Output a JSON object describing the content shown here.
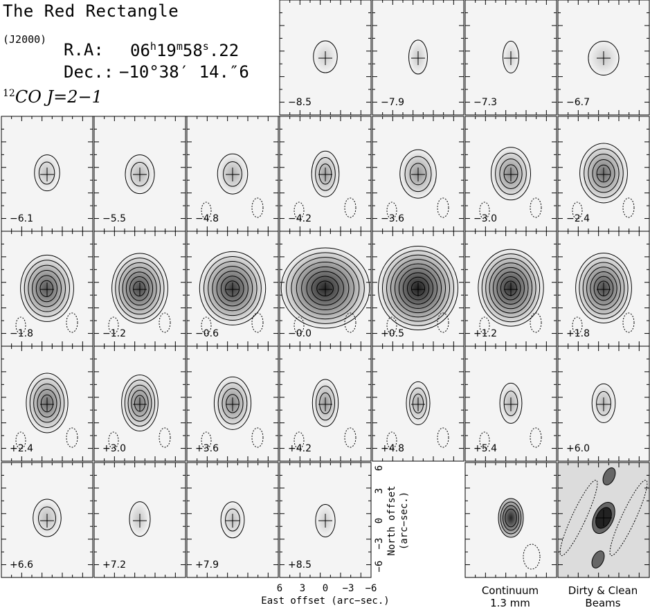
{
  "header": {
    "title": "The Red Rectangle",
    "epoch": "(J2000)",
    "ra_label": "R.A:",
    "ra_hours": "06",
    "ra_h_unit": "h",
    "ra_minutes": "19",
    "ra_m_unit": "m",
    "ra_seconds": "58",
    "ra_s_unit": "s",
    "ra_frac": ".22",
    "dec_label": "Dec.:",
    "dec_value": "−10°38′ 14.″6",
    "line_iso": "12",
    "line_name": "CO  J=2−1"
  },
  "channels": [
    {
      "label": "−8.5"
    },
    {
      "label": "−7.9"
    },
    {
      "label": "−7.3"
    },
    {
      "label": "−6.7"
    },
    {
      "label": "−6.1"
    },
    {
      "label": "−5.5"
    },
    {
      "label": "−4.8"
    },
    {
      "label": "−4.2"
    },
    {
      "label": "−3.6"
    },
    {
      "label": "−3.0"
    },
    {
      "label": "−2.4"
    },
    {
      "label": "−1.8"
    },
    {
      "label": "−1.2"
    },
    {
      "label": "−0.6"
    },
    {
      "label": "−0.0"
    },
    {
      "label": "+0.5"
    },
    {
      "label": "+1.2"
    },
    {
      "label": "+1.8"
    },
    {
      "label": "+2.4"
    },
    {
      "label": "+3.0"
    },
    {
      "label": "+3.6"
    },
    {
      "label": "+4.2"
    },
    {
      "label": "+4.8"
    },
    {
      "label": "+5.4"
    },
    {
      "label": "+6.0"
    },
    {
      "label": "+6.6"
    },
    {
      "label": "+7.2"
    },
    {
      "label": "+7.9"
    },
    {
      "label": "+8.5"
    }
  ],
  "x_axis": {
    "ticks": [
      "6",
      "3",
      "0",
      "−3",
      "−6"
    ],
    "label": "East offset (arc−sec.)"
  },
  "y_axis": {
    "ticks": [
      "6",
      "3",
      "0",
      "−3",
      "−6"
    ],
    "label_line1": "North offset",
    "label_line2": "(arc−sec.)"
  },
  "captions": {
    "continuum_line1": "Continuum",
    "continuum_line2": "1.3 mm",
    "beams_line1": "Dirty & Clean",
    "beams_line2": "Beams"
  },
  "colors": {
    "frame": "#000000",
    "contour": "#000000",
    "background_gray": "#f4f4f4",
    "peak_gray": "#222222"
  }
}
